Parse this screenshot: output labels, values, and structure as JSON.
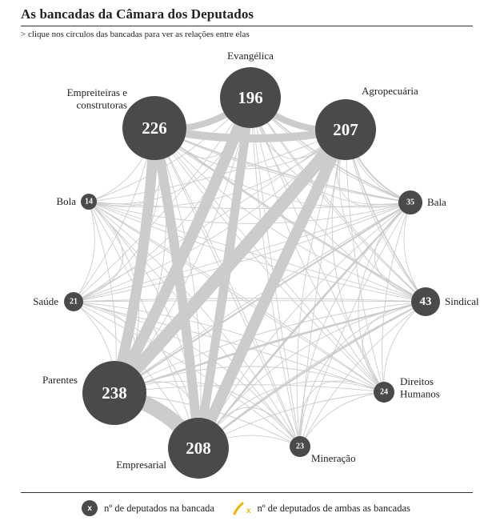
{
  "header": {
    "title": "As bancadas da Câmara dos Deputados",
    "subtitle": "> clique nos círculos das bancadas para ver as relações entre elas"
  },
  "nodes": [
    {
      "id": "evangelica",
      "label": [
        "Evangélica"
      ],
      "count": 196
    },
    {
      "id": "agropecuaria",
      "label": [
        "Agropecuária"
      ],
      "count": 207
    },
    {
      "id": "bala",
      "label": [
        "Bala"
      ],
      "count": 35
    },
    {
      "id": "sindical",
      "label": [
        "Sindical"
      ],
      "count": 43
    },
    {
      "id": "direitos-humanos",
      "label": [
        "Direitos",
        "Humanos"
      ],
      "count": 24
    },
    {
      "id": "mineracao",
      "label": [
        "Mineração"
      ],
      "count": 23
    },
    {
      "id": "empresarial",
      "label": [
        "Empresarial"
      ],
      "count": 208
    },
    {
      "id": "parentes",
      "label": [
        "Parentes"
      ],
      "count": 238
    },
    {
      "id": "saude",
      "label": [
        "Saúde"
      ],
      "count": 21
    },
    {
      "id": "bola",
      "label": [
        "Bola"
      ],
      "count": 14
    },
    {
      "id": "empreiteiras",
      "label": [
        "Empreiteiras e",
        "construtoras"
      ],
      "count": 226
    }
  ],
  "links": [
    {
      "a": "parentes",
      "b": "empresarial",
      "w": 19
    },
    {
      "a": "parentes",
      "b": "agropecuaria",
      "w": 16
    },
    {
      "a": "parentes",
      "b": "evangelica",
      "w": 14
    },
    {
      "a": "parentes",
      "b": "empreiteiras",
      "w": 13
    },
    {
      "a": "empresarial",
      "b": "agropecuaria",
      "w": 14
    },
    {
      "a": "empresarial",
      "b": "empreiteiras",
      "w": 12
    },
    {
      "a": "empresarial",
      "b": "evangelica",
      "w": 11
    },
    {
      "a": "empreiteiras",
      "b": "agropecuaria",
      "w": 10
    },
    {
      "a": "empreiteiras",
      "b": "evangelica",
      "w": 8
    },
    {
      "a": "evangelica",
      "b": "agropecuaria",
      "w": 8
    },
    {
      "a": "parentes",
      "b": "sindical",
      "w": 2
    },
    {
      "a": "parentes",
      "b": "bala",
      "w": 2
    },
    {
      "a": "empresarial",
      "b": "sindical",
      "w": 2
    },
    {
      "a": "empresarial",
      "b": "bala",
      "w": 2
    },
    {
      "a": "agropecuaria",
      "b": "bala",
      "w": 2
    },
    {
      "a": "evangelica",
      "b": "bala",
      "w": 1.5
    },
    {
      "a": "empreiteiras",
      "b": "sindical",
      "w": 1.5
    },
    {
      "a": "evangelica",
      "b": "sindical",
      "w": 1
    },
    {
      "a": "agropecuaria",
      "b": "sindical",
      "w": 1.5
    },
    {
      "a": "empreiteiras",
      "b": "bala",
      "w": 1.5
    }
  ],
  "legend": {
    "node_symbol": "x",
    "node_text": "nº de deputados na bancada",
    "link_symbol": "x",
    "link_text": "nº de deputados de ambas as bancadas",
    "link_color": "#f0b400"
  },
  "colors": {
    "node_fill": "#4a4a4a",
    "link": "#cccccc",
    "background": "#ffffff"
  }
}
